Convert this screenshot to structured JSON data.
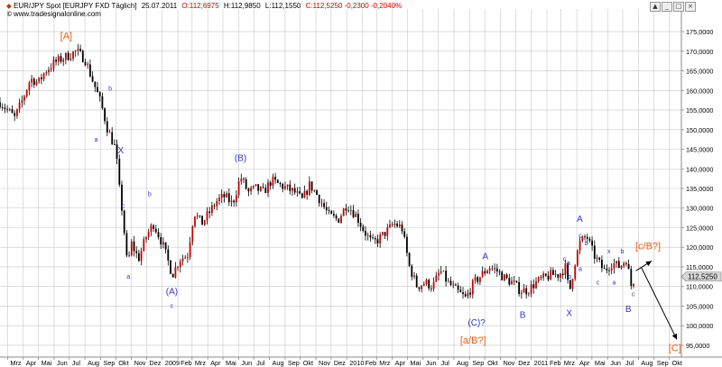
{
  "header": {
    "instrument": "EUR/JPY Spot [EURJPY FXD  Täglich]",
    "datetime": "25.07.2011",
    "open": "O:112,6975",
    "high": "H:112,9850",
    "low": "L:112,1550",
    "close_change": "C:112,5250  -0,2300  -0,2040%",
    "source": "www.tradesignalonline.com"
  },
  "window_buttons": [
    "▲",
    "_",
    "□",
    "×"
  ],
  "price_label": "112,5250",
  "colors": {
    "wave_major": "#e8601c",
    "wave_minor": "#3333cc",
    "candle": "#000000",
    "candle_up": "#cc0000",
    "grid": "#c8c8c8",
    "price_box": "#d8d8d8"
  },
  "chart_data": {
    "type": "line",
    "y_axis": {
      "ylim": [
        92000,
        178000
      ],
      "ticks": [
        95000,
        100000,
        105000,
        110000,
        115000,
        120000,
        125000,
        130000,
        135000,
        140000,
        145000,
        150000,
        155000,
        160000,
        165000,
        170000,
        175000
      ],
      "tick_labels": [
        "95,0000",
        "100,0000",
        "105,0000",
        "110,0000",
        "115,0000",
        "120,0000",
        "125,0000",
        "130,0000",
        "135,0000",
        "140,0000",
        "145,0000",
        "150,0000",
        "155,0000",
        "160,0000",
        "165,0000",
        "170,0000",
        "175,0000"
      ],
      "position": "right",
      "grid": true
    },
    "x_axis": {
      "start": "2008-02-15",
      "end": "2011-10-25",
      "tick_dates": [
        "2008-03-01",
        "2008-04-01",
        "2008-05-01",
        "2008-06-01",
        "2008-07-01",
        "2008-08-01",
        "2008-09-01",
        "2008-10-01",
        "2008-11-01",
        "2008-12-01",
        "2009-01-01",
        "2009-02-01",
        "2009-03-01",
        "2009-04-01",
        "2009-05-01",
        "2009-06-01",
        "2009-07-01",
        "2009-08-01",
        "2009-09-01",
        "2009-10-01",
        "2009-11-01",
        "2009-12-01",
        "2010-01-01",
        "2010-02-01",
        "2010-03-01",
        "2010-04-01",
        "2010-05-01",
        "2010-06-01",
        "2010-07-01",
        "2010-08-01",
        "2010-09-01",
        "2010-10-01",
        "2010-11-01",
        "2010-12-01",
        "2011-01-01",
        "2011-02-01",
        "2011-03-01",
        "2011-04-01",
        "2011-05-01",
        "2011-06-01",
        "2011-07-01",
        "2011-08-01",
        "2011-09-01",
        "2011-10-01"
      ],
      "tick_labels": [
        "Mrz",
        "Apr",
        "Mai",
        "Jun",
        "Jul",
        "Aug",
        "Sep",
        "Okt",
        "Nov",
        "Dez",
        "2009",
        "Feb",
        "Mrz",
        "Apr",
        "Mai",
        "Jun",
        "Jul",
        "Aug",
        "Sep",
        "Okt",
        "Nov",
        "Dez",
        "2010",
        "Feb",
        "Mrz",
        "Apr",
        "Mai",
        "Jun",
        "Jul",
        "Aug",
        "Sep",
        "Okt",
        "Nov",
        "Dez",
        "2011",
        "Feb",
        "Mrz",
        "Apr",
        "Mai",
        "Jun",
        "Jul",
        "Aug",
        "Sep",
        "Okt"
      ],
      "grid": true
    },
    "series": [
      {
        "style": "candlestick",
        "x": [
          "2008-02-15",
          "2008-03-01",
          "2008-03-15",
          "2008-04-01",
          "2008-04-15",
          "2008-05-01",
          "2008-05-15",
          "2008-06-01",
          "2008-06-15",
          "2008-07-01",
          "2008-07-15",
          "2008-08-01",
          "2008-08-15",
          "2008-09-01",
          "2008-09-15",
          "2008-10-01",
          "2008-10-08",
          "2008-10-15",
          "2008-10-24",
          "2008-11-01",
          "2008-11-15",
          "2008-12-01",
          "2008-12-15",
          "2009-01-01",
          "2009-01-21",
          "2009-02-05",
          "2009-02-20",
          "2009-03-05",
          "2009-03-20",
          "2009-04-05",
          "2009-04-20",
          "2009-05-05",
          "2009-05-20",
          "2009-06-05",
          "2009-06-20",
          "2009-07-05",
          "2009-07-20",
          "2009-08-05",
          "2009-08-20",
          "2009-09-05",
          "2009-09-20",
          "2009-10-05",
          "2009-10-20",
          "2009-11-05",
          "2009-11-27",
          "2009-12-15",
          "2010-01-01",
          "2010-01-20",
          "2010-02-05",
          "2010-02-20",
          "2010-03-05",
          "2010-03-20",
          "2010-04-05",
          "2010-04-20",
          "2010-05-05",
          "2010-05-20",
          "2010-06-05",
          "2010-06-20",
          "2010-07-05",
          "2010-07-20",
          "2010-08-05",
          "2010-08-24",
          "2010-09-10",
          "2010-09-25",
          "2010-10-10",
          "2010-10-25",
          "2010-11-10",
          "2010-11-25",
          "2010-12-10",
          "2010-12-25",
          "2011-01-10",
          "2011-01-25",
          "2011-02-10",
          "2011-02-25",
          "2011-03-10",
          "2011-03-17",
          "2011-03-28",
          "2011-04-07",
          "2011-04-20",
          "2011-05-05",
          "2011-05-25",
          "2011-06-10",
          "2011-06-25",
          "2011-07-08",
          "2011-07-18",
          "2011-07-25"
        ],
        "y": [
          157000,
          155000,
          153000,
          158000,
          163000,
          162000,
          165000,
          167000,
          168000,
          169000,
          170000,
          168000,
          163000,
          157000,
          150000,
          145000,
          135000,
          128000,
          115000,
          121000,
          117000,
          123000,
          126000,
          121000,
          113000,
          117000,
          118000,
          129000,
          126000,
          129000,
          132000,
          133000,
          131000,
          138000,
          134000,
          135000,
          134000,
          137000,
          136000,
          135000,
          134000,
          132000,
          136000,
          133000,
          128000,
          127000,
          131000,
          128000,
          124000,
          121000,
          122000,
          124000,
          126000,
          125000,
          115000,
          110000,
          111000,
          110000,
          114000,
          111000,
          109000,
          107000,
          111000,
          113000,
          115000,
          114000,
          112000,
          111000,
          109000,
          109000,
          111000,
          112000,
          113000,
          113000,
          115000,
          108000,
          116000,
          121000,
          123000,
          118000,
          114000,
          116000,
          115000,
          117000,
          110000,
          112525
        ]
      }
    ],
    "annotations": [
      {
        "text": "[A]",
        "x": "2008-06-25",
        "y": 173000,
        "color": "major"
      },
      {
        "text": "b",
        "x": "2008-09-20",
        "y": 160000,
        "color": "minor"
      },
      {
        "text": "a",
        "x": "2008-08-23",
        "y": 147000,
        "color": "minor"
      },
      {
        "text": "X",
        "x": "2008-10-11",
        "y": 144000,
        "color": "minor"
      },
      {
        "text": "c",
        "x": "2008-10-16",
        "y": 130000,
        "color": "minor"
      },
      {
        "text": "b",
        "x": "2008-12-07",
        "y": 133000,
        "color": "minor"
      },
      {
        "text": "a",
        "x": "2008-10-26",
        "y": 112000,
        "color": "minor"
      },
      {
        "text": "(B)",
        "x": "2009-06-05",
        "y": 142000,
        "color": "minor"
      },
      {
        "text": "(A)",
        "x": "2009-01-20",
        "y": 108000,
        "color": "minor"
      },
      {
        "text": "c",
        "x": "2009-01-20",
        "y": 104500,
        "color": "minor"
      },
      {
        "text": "A",
        "x": "2010-10-02",
        "y": 117000,
        "color": "minor"
      },
      {
        "text": "(C)?",
        "x": "2010-09-15",
        "y": 100000,
        "color": "minor"
      },
      {
        "text": "[a/B?]",
        "x": "2010-09-08",
        "y": 95500,
        "color": "major"
      },
      {
        "text": "B",
        "x": "2010-12-15",
        "y": 102000,
        "color": "minor"
      },
      {
        "text": "c",
        "x": "2011-03-08",
        "y": 116500,
        "color": "minor"
      },
      {
        "text": "a",
        "x": "2011-03-16",
        "y": 115500,
        "color": "minor"
      },
      {
        "text": "b",
        "x": "2011-03-18",
        "y": 112000,
        "color": "minor"
      },
      {
        "text": "X",
        "x": "2011-03-17",
        "y": 102500,
        "color": "minor"
      },
      {
        "text": "A",
        "x": "2011-04-07",
        "y": 126500,
        "color": "minor"
      },
      {
        "text": "c",
        "x": "2011-04-08",
        "y": 122500,
        "color": "minor"
      },
      {
        "text": "b",
        "x": "2011-04-20",
        "y": 120500,
        "color": "minor"
      },
      {
        "text": "a",
        "x": "2011-04-08",
        "y": 114000,
        "color": "minor"
      },
      {
        "text": "c",
        "x": "2011-05-13",
        "y": 110500,
        "color": "minor"
      },
      {
        "text": "x",
        "x": "2011-06-04",
        "y": 118500,
        "color": "minor"
      },
      {
        "text": "b",
        "x": "2011-06-30",
        "y": 118500,
        "color": "minor"
      },
      {
        "text": "a",
        "x": "2011-06-14",
        "y": 110500,
        "color": "minor"
      },
      {
        "text": "c",
        "x": "2011-07-22",
        "y": 107500,
        "color": "minor"
      },
      {
        "text": "B",
        "x": "2011-07-12",
        "y": 103500,
        "color": "minor"
      },
      {
        "text": "[c/B?]",
        "x": "2011-08-20",
        "y": 119500,
        "color": "major"
      },
      {
        "text": "[C]",
        "x": "2011-10-12",
        "y": 93500,
        "color": "major"
      }
    ],
    "arrows": [
      {
        "from": {
          "x": "2011-07-27",
          "y": 114000
        },
        "to": {
          "x": "2011-08-27",
          "y": 116500
        }
      },
      {
        "from": {
          "x": "2011-08-07",
          "y": 114800
        },
        "to": {
          "x": "2011-10-16",
          "y": 96500
        }
      }
    ]
  }
}
